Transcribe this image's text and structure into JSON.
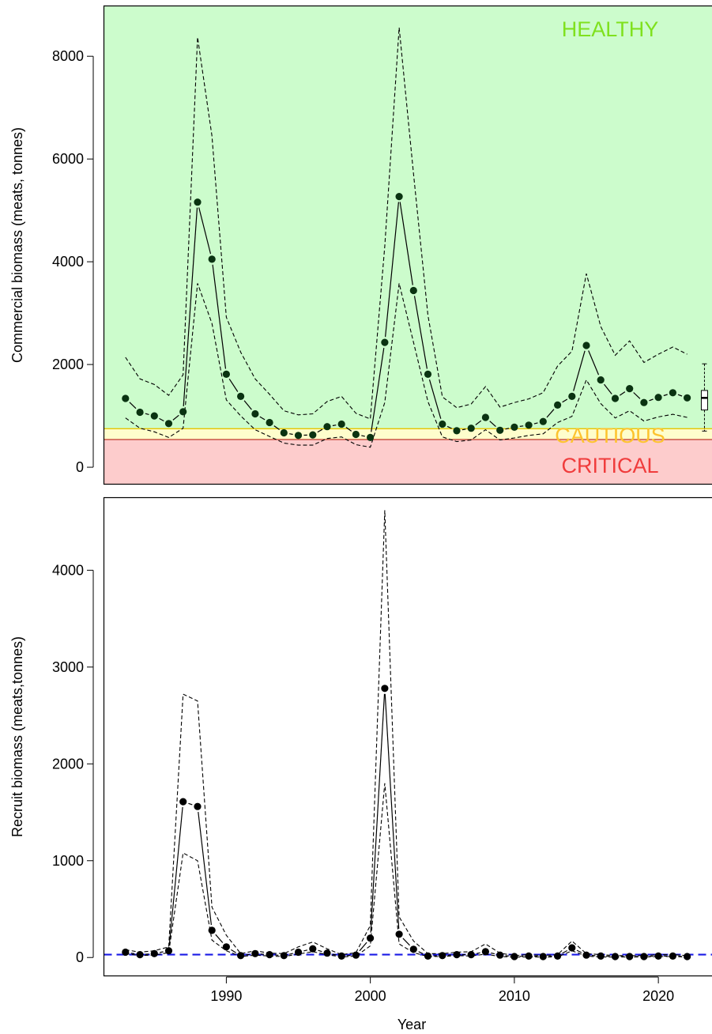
{
  "colors": {
    "healthy_fill": "#ccfccc",
    "cautious_fill": "#fefecc",
    "critical_fill": "#fdcccc",
    "healthy_text": "#7fe11e",
    "cautious_text": "#fdc32e",
    "critical_text": "#f03c3c",
    "cautious_line": "#e8c400",
    "critical_line": "#c0392b",
    "point_dark_green": "#0a3311",
    "recruit_reference": "#1a1ae6"
  },
  "chart_data": [
    {
      "type": "line",
      "panel": "top",
      "ylabel": "Commercial biomass (meats, tonnes)",
      "xlabel": "",
      "xlim": [
        1981.5,
        2024.3
      ],
      "ylim": [
        -330,
        8980
      ],
      "yticks": [
        0,
        2000,
        4000,
        6000,
        8000
      ],
      "grid": false,
      "zones": {
        "healthy_label": "HEALTHY",
        "cautious_label": "CAUTIOUS",
        "critical_label": "CRITICAL",
        "upper_stock_reference": 750,
        "lower_reference_point": 540
      },
      "years": [
        1983,
        1984,
        1985,
        1986,
        1987,
        1988,
        1989,
        1990,
        1991,
        1992,
        1993,
        1994,
        1995,
        1996,
        1997,
        1998,
        1999,
        2000,
        2001,
        2002,
        2003,
        2004,
        2005,
        2006,
        2007,
        2008,
        2009,
        2010,
        2011,
        2012,
        2013,
        2014,
        2015,
        2016,
        2017,
        2018,
        2019,
        2020,
        2021,
        2022
      ],
      "median": [
        1340,
        1070,
        1000,
        850,
        1080,
        5160,
        4050,
        1810,
        1380,
        1040,
        870,
        670,
        620,
        630,
        790,
        840,
        640,
        580,
        2430,
        5270,
        3440,
        1810,
        840,
        710,
        760,
        970,
        720,
        780,
        820,
        890,
        1210,
        1380,
        2370,
        1700,
        1340,
        1530,
        1260,
        1360,
        1450,
        1350
      ],
      "lower": [
        960,
        760,
        690,
        580,
        760,
        3580,
        2800,
        1310,
        1000,
        730,
        600,
        470,
        430,
        430,
        560,
        590,
        440,
        390,
        1260,
        3580,
        2430,
        1280,
        590,
        500,
        530,
        730,
        530,
        570,
        620,
        650,
        870,
        990,
        1700,
        1240,
        960,
        1100,
        900,
        980,
        1030,
        970
      ],
      "upper": [
        2140,
        1720,
        1610,
        1400,
        1800,
        8370,
        6450,
        2920,
        2240,
        1720,
        1420,
        1100,
        1020,
        1040,
        1280,
        1380,
        1050,
        940,
        4300,
        8560,
        5710,
        2960,
        1370,
        1160,
        1230,
        1570,
        1170,
        1260,
        1330,
        1450,
        1970,
        2260,
        3770,
        2740,
        2180,
        2460,
        2040,
        2200,
        2340,
        2200
      ]
    },
    {
      "type": "line",
      "panel": "bottom",
      "ylabel": "Recruit biomass (meats,tonnes)",
      "xlabel": "Year",
      "xlim": [
        1981.5,
        2024.3
      ],
      "ylim": [
        -190,
        4750
      ],
      "yticks": [
        0,
        1000,
        2000,
        3000,
        4000
      ],
      "xticks": [
        1990,
        2000,
        2010,
        2020
      ],
      "grid": false,
      "reference_line": 30,
      "years": [
        1983,
        1984,
        1985,
        1986,
        1987,
        1988,
        1989,
        1990,
        1991,
        1992,
        1993,
        1994,
        1995,
        1996,
        1997,
        1998,
        1999,
        2000,
        2001,
        2002,
        2003,
        2004,
        2005,
        2006,
        2007,
        2008,
        2009,
        2010,
        2011,
        2012,
        2013,
        2014,
        2015,
        2016,
        2017,
        2018,
        2019,
        2020,
        2021,
        2022
      ],
      "median": [
        55,
        30,
        40,
        70,
        1610,
        1560,
        280,
        110,
        20,
        40,
        30,
        20,
        55,
        90,
        45,
        15,
        25,
        200,
        2780,
        240,
        85,
        15,
        20,
        30,
        30,
        60,
        25,
        10,
        15,
        10,
        15,
        100,
        25,
        15,
        10,
        10,
        10,
        15,
        15,
        10
      ],
      "lower": [
        40,
        20,
        25,
        50,
        1080,
        1000,
        180,
        70,
        10,
        25,
        15,
        10,
        35,
        60,
        30,
        5,
        15,
        120,
        1800,
        140,
        50,
        10,
        10,
        20,
        15,
        35,
        10,
        5,
        5,
        5,
        5,
        70,
        15,
        5,
        5,
        5,
        5,
        10,
        10,
        5
      ],
      "upper": [
        80,
        55,
        70,
        110,
        2720,
        2650,
        520,
        230,
        40,
        70,
        45,
        40,
        110,
        160,
        90,
        30,
        50,
        330,
        4620,
        420,
        170,
        40,
        40,
        55,
        60,
        140,
        45,
        20,
        30,
        20,
        30,
        170,
        40,
        30,
        20,
        20,
        20,
        30,
        30,
        20
      ]
    }
  ]
}
